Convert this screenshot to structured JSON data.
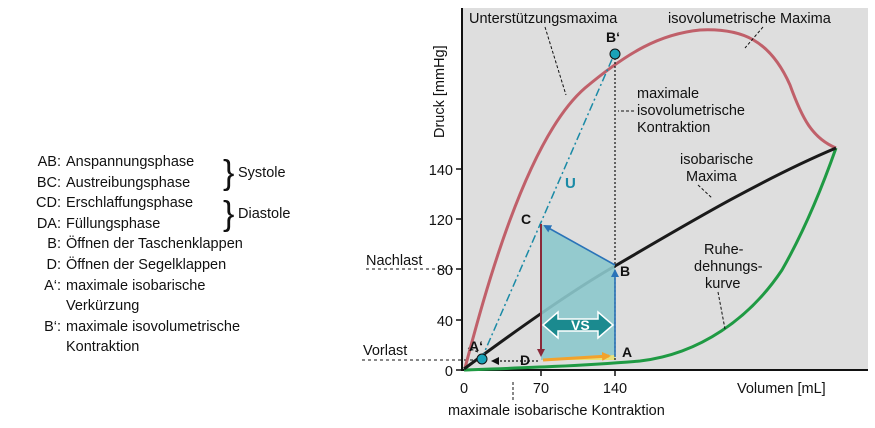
{
  "legend": {
    "items": [
      {
        "code": "AB:",
        "text": "Anspannungsphase"
      },
      {
        "code": "BC:",
        "text": "Austreibungsphase"
      },
      {
        "code": "CD:",
        "text": "Erschlaffungsphase"
      },
      {
        "code": "DA:",
        "text": "Füllungsphase"
      },
      {
        "code": "B:",
        "text": "Öffnen der Taschenklappen"
      },
      {
        "code": "D:",
        "text": "Öffnen der Segelklappen"
      },
      {
        "code": "A‘:",
        "text": "maximale isobarische"
      },
      {
        "code": "",
        "text": "Verkürzung"
      },
      {
        "code": "B‘:",
        "text": "maximale isovolumetrische"
      },
      {
        "code": "",
        "text": "Kontraktion"
      }
    ],
    "systole": "Systole",
    "diastole": "Diastole"
  },
  "diagram": {
    "y_axis_label": "Druck [mmHg]",
    "x_axis_label": "Volumen [mL]",
    "y_ticks": [
      "0",
      "40",
      "80",
      "120",
      "140"
    ],
    "x_ticks": [
      "0",
      "70",
      "140"
    ],
    "nachlast": "Nachlast",
    "vorlast": "Vorlast",
    "unterstuetzung": "Unterstützungsmaxima",
    "isovol_maxima": "isovolumetrische Maxima",
    "max_isovol_1": "maximale",
    "max_isovol_2": "isovolumetrische",
    "max_isovol_3": "Kontraktion",
    "isobar_1": "isobarische",
    "isobar_2": "Maxima",
    "ruhe_1": "Ruhe-",
    "ruhe_2": "dehnungs-",
    "ruhe_3": "kurve",
    "max_isobar_bottom": "maximale isobarische Kontraktion",
    "point_a": "A",
    "point_b": "B",
    "point_c": "C",
    "point_d": "D",
    "point_a_prime": "A‘",
    "point_b_prime": "B‘",
    "u_label": "U",
    "vs_label": "VS",
    "colors": {
      "panel": "#dedede",
      "isovolumetric_curve": "#c0606a",
      "isobaric_curve": "#1a1a1a",
      "rest_curve": "#1f9a43",
      "loop_fill": "#8cc8cc",
      "loop_edge": "#2a73b8",
      "u_line": "#1a8aa6",
      "vs_arrow": "#1b8a8f"
    }
  }
}
